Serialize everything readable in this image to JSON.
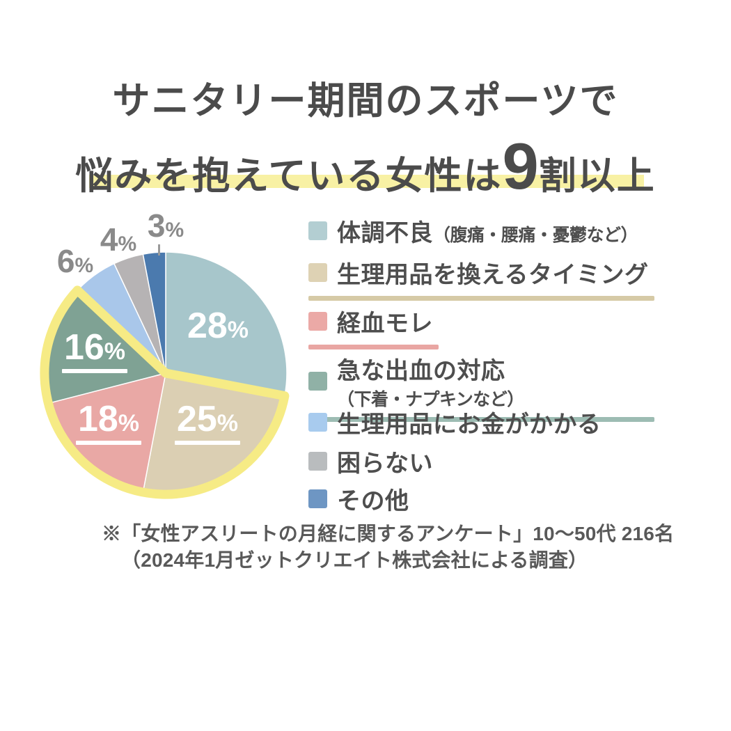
{
  "title": {
    "line1": "サニタリー期間のスポーツで",
    "line2_prefix": "悩みを抱えている女性は",
    "line2_emphasis": "9",
    "line2_suffix": "割以上",
    "highlight_color": "#f8f1a4"
  },
  "chart_data": {
    "type": "pie",
    "unit": "%",
    "start_angle": "12-oclock",
    "direction": "clockwise",
    "categories": [
      "体調不良（腹痛・腰痛・憂鬱など）",
      "生理用品を換えるタイミング",
      "経血モレ",
      "急な出血の対応（下着・ナプキンなど）",
      "生理用品にお金がかかる",
      "困らない",
      "その他"
    ],
    "values": [
      28,
      25,
      18,
      16,
      6,
      4,
      3
    ],
    "colors": [
      "#a7c6cb",
      "#dbcfb3",
      "#e9a8a5",
      "#7fa294",
      "#a9c7ea",
      "#b6b3b4",
      "#4b7aae"
    ],
    "inside_label_indices": [
      0,
      1,
      2,
      3
    ],
    "outside_label_indices": [
      4,
      5,
      6
    ],
    "highlight": {
      "indices": [
        1,
        2,
        3
      ],
      "outline_color": "#f6eb85",
      "meaning": "25%+18%+16% group outlined in yellow"
    }
  },
  "legend": {
    "items": [
      {
        "label": "体調不良",
        "note": "（腹痛・腰痛・憂鬱など）",
        "color": "#b3ced2",
        "underline_color": ""
      },
      {
        "label": "生理用品を換えるタイミング",
        "note": "",
        "color": "#ded2b4",
        "underline_color": "#d6caa6"
      },
      {
        "label": "経血モレ",
        "note": "",
        "color": "#eba9a6",
        "underline_color": "#e9a6a3"
      },
      {
        "label": "急な出血の対応",
        "note": "（下着・ナプキンなど）",
        "color": "#90b1a6",
        "underline_color": "#9dbcb3"
      },
      {
        "label": "生理用品にお金がかかる",
        "note": "",
        "color": "#a8cbee",
        "underline_color": ""
      },
      {
        "label": "困らない",
        "note": "",
        "color": "#b9bcbe",
        "underline_color": ""
      },
      {
        "label": "その他",
        "note": "",
        "color": "#6e96c3",
        "underline_color": ""
      }
    ]
  },
  "footnote": {
    "line1": "※「女性アスリートの月経に関するアンケート」10〜50代 216名",
    "line2": "（2024年1月ゼットクリエイト株式会社による調査）"
  }
}
